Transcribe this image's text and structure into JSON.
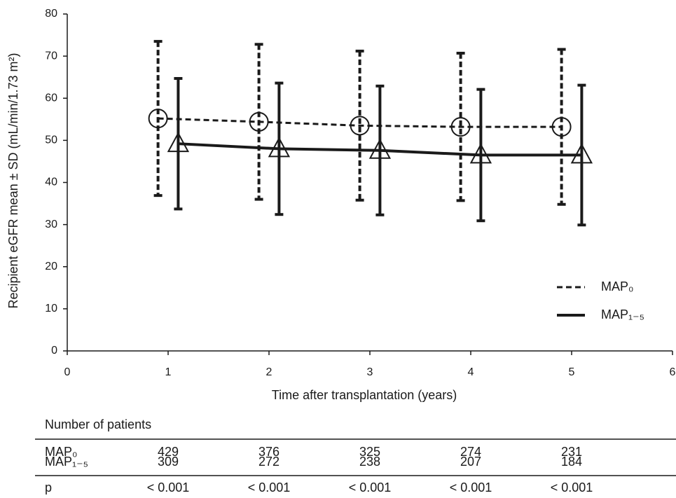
{
  "chart_data": {
    "type": "errorline",
    "xlabel": "Time after transplantation (years)",
    "ylabel": "Recipient eGFR mean ± SD (mL/min/1.73 m²)",
    "xlim": [
      0,
      6
    ],
    "xticks": [
      0,
      1,
      2,
      3,
      4,
      5,
      6
    ],
    "ylim": [
      0,
      80
    ],
    "yticks": [
      0,
      10,
      20,
      30,
      40,
      50,
      60,
      70,
      80
    ],
    "legend": "lower right",
    "series": [
      {
        "name": "MAP₀",
        "color": "#1a1a1a",
        "linestyle": "dashed",
        "marker": "circle",
        "x": [
          0.9,
          1.9,
          2.9,
          3.9,
          4.9
        ],
        "values": [
          55.2,
          54.4,
          53.5,
          53.2,
          53.2
        ],
        "errors": [
          18.3,
          18.4,
          17.7,
          17.5,
          18.4
        ]
      },
      {
        "name": "MAP₁₋₅",
        "color": "#1a1a1a",
        "linestyle": "solid",
        "marker": "triangle",
        "x": [
          1.1,
          2.1,
          3.1,
          4.1,
          5.1
        ],
        "values": [
          49.2,
          48.0,
          47.6,
          46.5,
          46.5
        ],
        "errors": [
          15.5,
          15.6,
          15.3,
          15.6,
          16.6
        ]
      }
    ]
  },
  "table": {
    "title": "Number of patients",
    "rows": [
      {
        "label": "MAP₀",
        "values": [
          429,
          376,
          325,
          274,
          231
        ]
      },
      {
        "label": "MAP₁₋₅",
        "values": [
          309,
          272,
          238,
          207,
          184
        ]
      },
      {
        "label": "p",
        "values": [
          "< 0.001",
          "< 0.001",
          "< 0.001",
          "< 0.001",
          "< 0.001"
        ]
      }
    ]
  }
}
